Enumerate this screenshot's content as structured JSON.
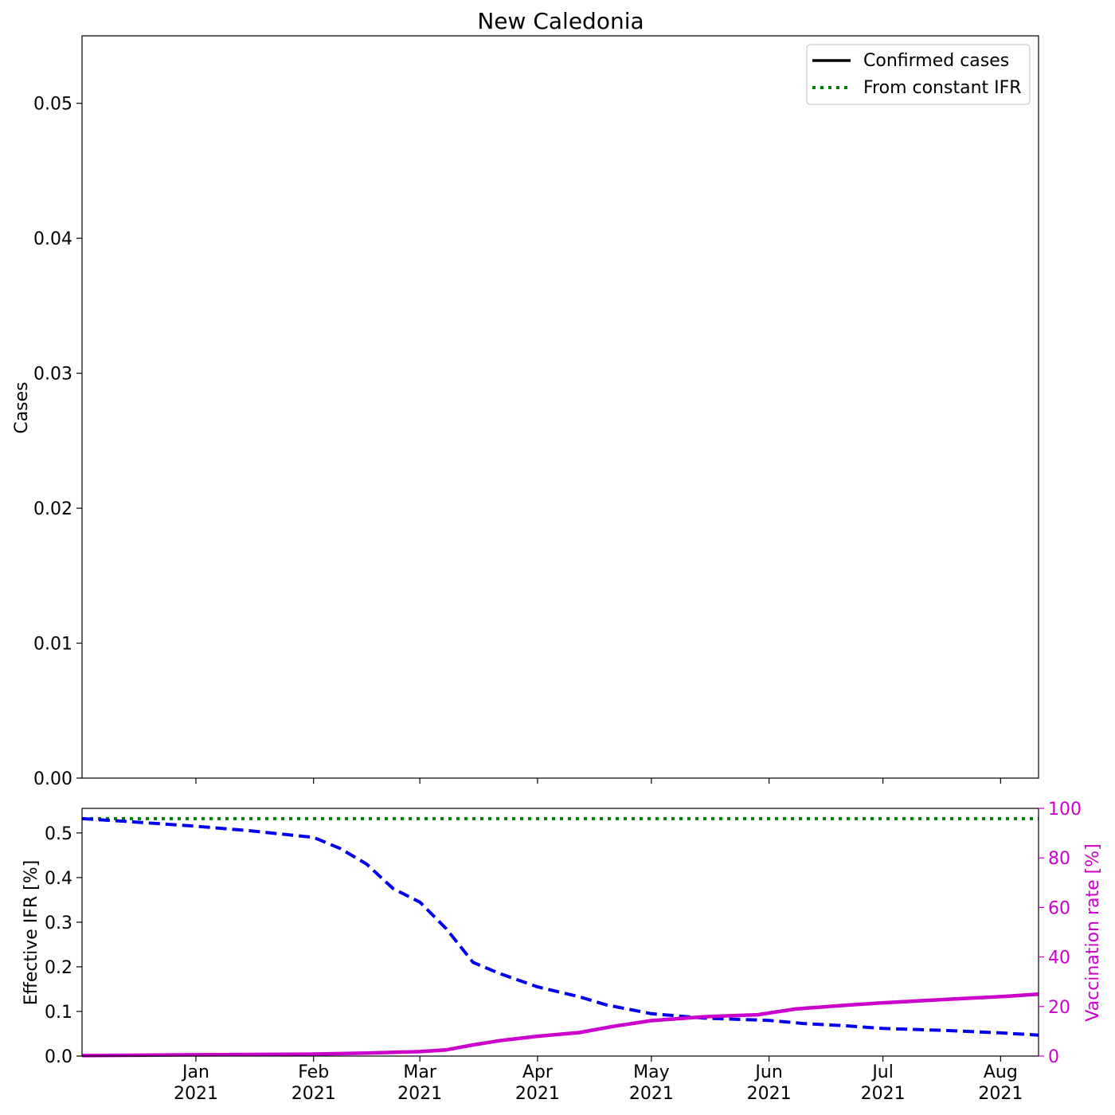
{
  "chart_data": [
    {
      "type": "line",
      "title": "New Caledonia",
      "xlabel": "",
      "ylabel": "Cases",
      "ylim": [
        0,
        0.055
      ],
      "yticks": [
        "0.00",
        "0.01",
        "0.02",
        "0.03",
        "0.04",
        "0.05"
      ],
      "grid": false,
      "legend": {
        "placement": "top-right",
        "entries": [
          {
            "label": "Confirmed cases",
            "color": "#000000",
            "style": "solid"
          },
          {
            "label": "From constant IFR",
            "color": "#008000",
            "style": "dotted"
          }
        ]
      },
      "series": [
        {
          "name": "Confirmed cases",
          "x": [],
          "values": []
        },
        {
          "name": "From constant IFR",
          "x": [],
          "values": []
        }
      ]
    },
    {
      "type": "line",
      "xlabel": "",
      "ylabel": "Effective IFR [%]",
      "y2label": "Vaccination rate [%]",
      "xlim": [
        "2020-12-02",
        "2021-08-11"
      ],
      "ylim": [
        0,
        0.555
      ],
      "y2lim": [
        0,
        100
      ],
      "yticks": [
        "0.0",
        "0.1",
        "0.2",
        "0.3",
        "0.4",
        "0.5"
      ],
      "y2ticks": [
        "0",
        "20",
        "40",
        "60",
        "80",
        "100"
      ],
      "xticks": [
        {
          "date": "2021-01-01",
          "month": "Jan",
          "year": "2021"
        },
        {
          "date": "2021-02-01",
          "month": "Feb",
          "year": "2021"
        },
        {
          "date": "2021-03-01",
          "month": "Mar",
          "year": "2021"
        },
        {
          "date": "2021-04-01",
          "month": "Apr",
          "year": "2021"
        },
        {
          "date": "2021-05-01",
          "month": "May",
          "year": "2021"
        },
        {
          "date": "2021-06-01",
          "month": "Jun",
          "year": "2021"
        },
        {
          "date": "2021-07-01",
          "month": "Jul",
          "year": "2021"
        },
        {
          "date": "2021-08-01",
          "month": "Aug",
          "year": "2021"
        }
      ],
      "colors": {
        "constant_ifr": "#008000",
        "effective_ifr": "#0000ee",
        "vaccination": "#cc00cc"
      },
      "series": [
        {
          "axis": "left",
          "color": "#008000",
          "style": "dotted",
          "x": [
            "2020-12-02",
            "2021-08-11"
          ],
          "values": [
            0.532,
            0.532
          ]
        },
        {
          "axis": "left",
          "color": "#0000ee",
          "style": "dashed",
          "x": [
            "2020-12-02",
            "2020-12-15",
            "2021-01-01",
            "2021-01-15",
            "2021-02-01",
            "2021-02-08",
            "2021-02-15",
            "2021-02-22",
            "2021-03-01",
            "2021-03-08",
            "2021-03-15",
            "2021-03-22",
            "2021-04-01",
            "2021-04-12",
            "2021-04-19",
            "2021-05-01",
            "2021-05-15",
            "2021-06-01",
            "2021-06-10",
            "2021-06-21",
            "2021-07-01",
            "2021-07-19",
            "2021-08-01",
            "2021-08-11"
          ],
          "values": [
            0.532,
            0.525,
            0.515,
            0.505,
            0.49,
            0.465,
            0.43,
            0.375,
            0.345,
            0.285,
            0.21,
            0.185,
            0.155,
            0.133,
            0.115,
            0.095,
            0.085,
            0.08,
            0.073,
            0.068,
            0.062,
            0.057,
            0.052,
            0.047
          ]
        },
        {
          "axis": "right",
          "color": "#cc00cc",
          "style": "solid",
          "x": [
            "2020-12-02",
            "2021-01-01",
            "2021-02-01",
            "2021-02-15",
            "2021-03-01",
            "2021-03-08",
            "2021-03-15",
            "2021-03-22",
            "2021-04-01",
            "2021-04-12",
            "2021-04-21",
            "2021-05-01",
            "2021-05-15",
            "2021-05-29",
            "2021-06-08",
            "2021-06-21",
            "2021-07-01",
            "2021-07-19",
            "2021-08-01",
            "2021-08-11"
          ],
          "values": [
            0.2,
            0.5,
            0.8,
            1.2,
            1.8,
            2.5,
            4.5,
            6.2,
            8.0,
            9.5,
            12.0,
            14.3,
            15.9,
            16.7,
            19.0,
            20.5,
            21.5,
            23.0,
            24.0,
            25.0
          ]
        }
      ]
    }
  ]
}
